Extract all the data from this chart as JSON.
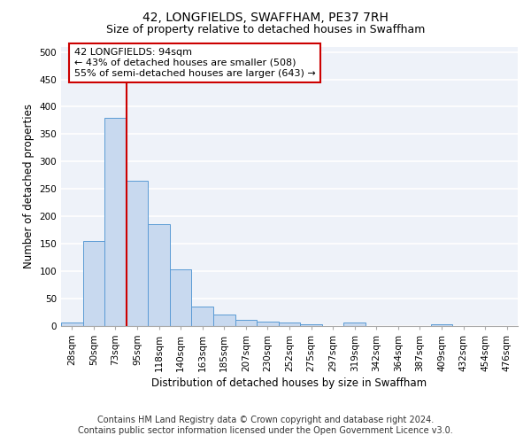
{
  "title": "42, LONGFIELDS, SWAFFHAM, PE37 7RH",
  "subtitle": "Size of property relative to detached houses in Swaffham",
  "xlabel": "Distribution of detached houses by size in Swaffham",
  "ylabel": "Number of detached properties",
  "categories": [
    "28sqm",
    "50sqm",
    "73sqm",
    "95sqm",
    "118sqm",
    "140sqm",
    "163sqm",
    "185sqm",
    "207sqm",
    "230sqm",
    "252sqm",
    "275sqm",
    "297sqm",
    "319sqm",
    "342sqm",
    "364sqm",
    "387sqm",
    "409sqm",
    "432sqm",
    "454sqm",
    "476sqm"
  ],
  "values": [
    5,
    155,
    380,
    265,
    185,
    103,
    35,
    20,
    10,
    8,
    5,
    2,
    0,
    5,
    0,
    0,
    0,
    3,
    0,
    0,
    0
  ],
  "bar_color": "#c8d9ef",
  "bar_edge_color": "#5b9bd5",
  "vline_x_index": 2,
  "annotation_line1": "42 LONGFIELDS: 94sqm",
  "annotation_line2": "← 43% of detached houses are smaller (508)",
  "annotation_line3": "55% of semi-detached houses are larger (643) →",
  "annotation_box_color": "white",
  "annotation_box_edge_color": "#cc0000",
  "vline_color": "#cc0000",
  "ylim_max": 510,
  "yticks": [
    0,
    50,
    100,
    150,
    200,
    250,
    300,
    350,
    400,
    450,
    500
  ],
  "footer_line1": "Contains HM Land Registry data © Crown copyright and database right 2024.",
  "footer_line2": "Contains public sector information licensed under the Open Government Licence v3.0.",
  "bg_color": "#eef2f9",
  "grid_color": "#ffffff",
  "title_fontsize": 10,
  "subtitle_fontsize": 9,
  "axis_label_fontsize": 8.5,
  "tick_fontsize": 7.5,
  "annotation_fontsize": 8,
  "footer_fontsize": 7
}
